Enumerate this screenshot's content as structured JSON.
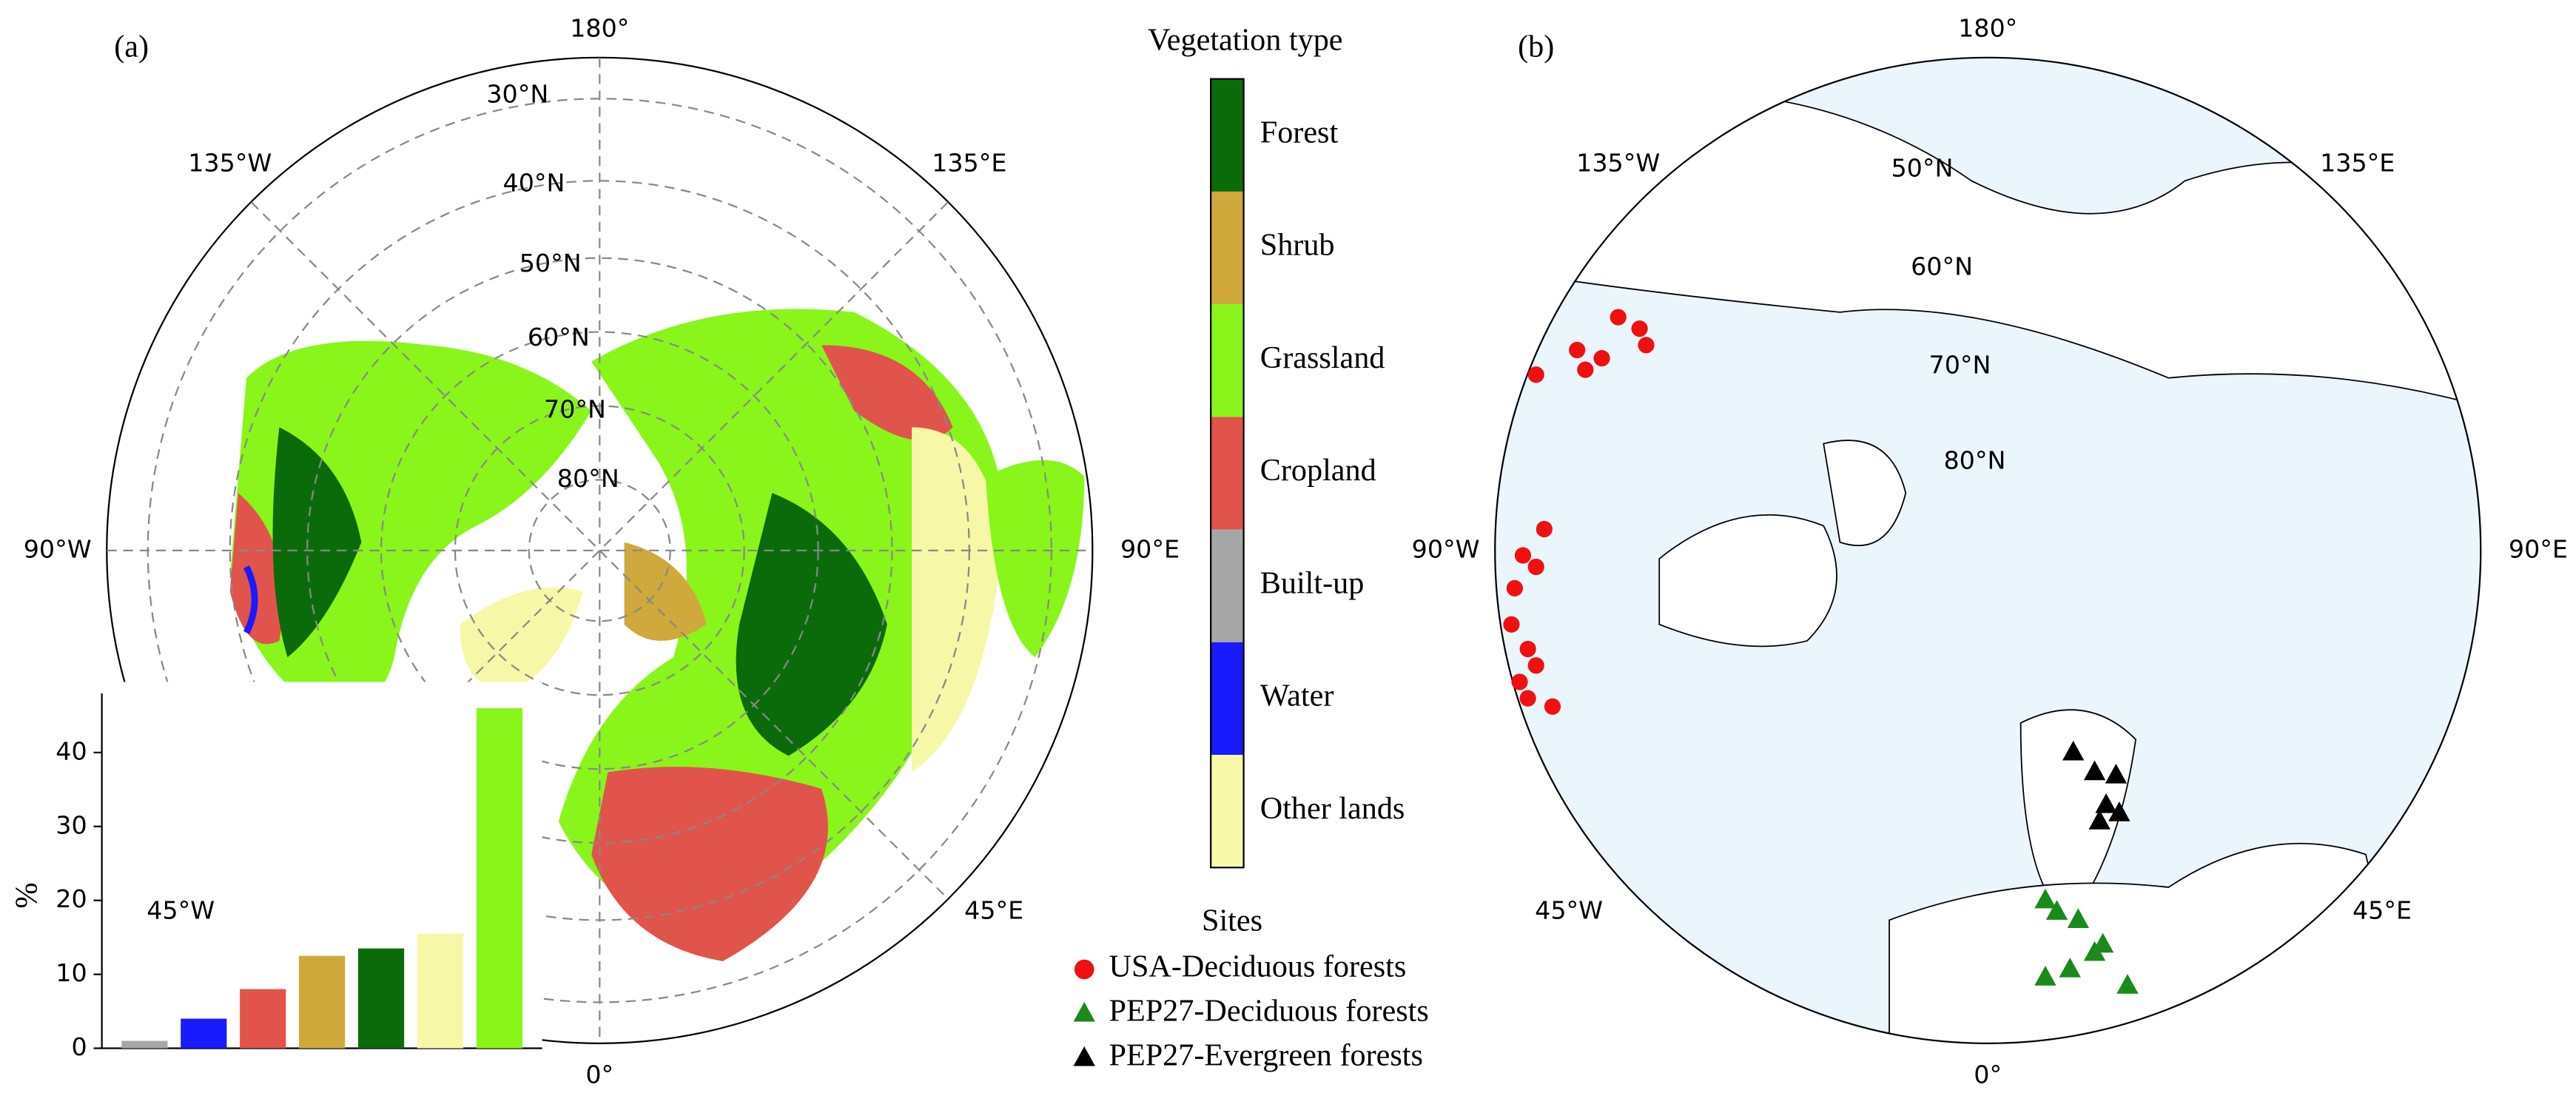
{
  "panels": [
    {
      "label": "(a)",
      "meridian_labels": [
        "180°",
        "135°W",
        "135°E",
        "90°W",
        "90°E",
        "45°W",
        "45°E",
        "0°"
      ],
      "parallel_labels": [
        "30°N",
        "40°N",
        "50°N",
        "60°N",
        "70°N",
        "80°N"
      ]
    },
    {
      "label": "(b)",
      "meridian_labels": [
        "180°",
        "135°W",
        "135°E",
        "90°W",
        "90°E",
        "45°W",
        "45°E",
        "0°"
      ],
      "parallel_labels": [
        "50°N",
        "60°N",
        "70°N",
        "80°N"
      ]
    }
  ],
  "legend": {
    "title": "Vegetation type",
    "items": [
      {
        "name": "Forest",
        "color": "#0b6b0b"
      },
      {
        "name": "Shrub",
        "color": "#cfa93b"
      },
      {
        "name": "Grassland",
        "color": "#8af51a"
      },
      {
        "name": "Cropland",
        "color": "#e0544c"
      },
      {
        "name": "Built-up",
        "color": "#a6a6a6"
      },
      {
        "name": "Water",
        "color": "#1a1aff"
      },
      {
        "name": "Other lands",
        "color": "#f7f7a8"
      }
    ]
  },
  "sites_legend": {
    "title": "Sites",
    "items": [
      {
        "name": "USA-Deciduous forests",
        "color": "#f01010",
        "marker": "circle"
      },
      {
        "name": "PEP27-Deciduous forests",
        "color": "#1a8a1a",
        "marker": "triangle"
      },
      {
        "name": "PEP27-Evergreen forests",
        "color": "#000000",
        "marker": "triangle"
      }
    ]
  },
  "chart_data": {
    "type": "bar",
    "ylabel": "%",
    "categories": [
      null,
      null,
      null,
      null,
      null,
      null,
      null
    ],
    "values": [
      1,
      4,
      8,
      12.5,
      13.5,
      15.5,
      46
    ],
    "colors": [
      "#a6a6a6",
      "#1a1aff",
      "#e0544c",
      "#cfa93b",
      "#0b6b0b",
      "#f7f7a8",
      "#8af51a"
    ],
    "ylim": [
      0,
      48
    ],
    "yticks": [
      0,
      10,
      20,
      30,
      40
    ]
  }
}
